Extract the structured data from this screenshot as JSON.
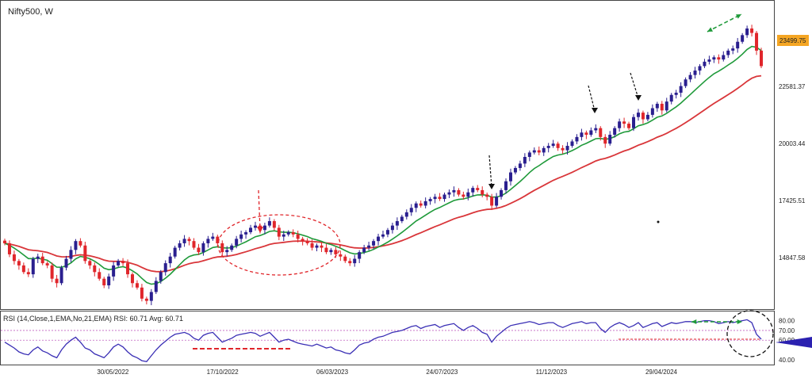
{
  "colors": {
    "up_candle": "#2a1f8f",
    "down_candle": "#e0262b",
    "ema_fast": "#1f9a3a",
    "ema_slow": "#d9363a",
    "rsi_line": "#3a2fb5",
    "rsi_bands": "#c060c0",
    "last_price_bg": "#f5a623",
    "rsi_marker": "#2b21b0",
    "annotation_red": "#e0262b",
    "annotation_green": "#1f9a3a",
    "annotation_black": "#111111"
  },
  "chart_data": [
    {
      "type": "candlestick",
      "title": "Nifty500, W",
      "x_ticks": [
        "30/05/2022",
        "17/10/2022",
        "06/03/2023",
        "24/07/2023",
        "11/12/2023",
        "29/04/2024"
      ],
      "y_ticks": [
        14847.58,
        17425.51,
        20003.44,
        22581.37
      ],
      "y_ticks_text": [
        "14847.58",
        "17425.51",
        "20003.44",
        "22581.37"
      ],
      "ylim": [
        12600,
        26200
      ],
      "last_price": 23499.75,
      "last_price_text": "23499.75",
      "series": [
        {
          "name": "Close",
          "values": [
            15500,
            15000,
            14700,
            14500,
            14200,
            14100,
            14800,
            14900,
            14600,
            14500,
            13900,
            13700,
            14400,
            14800,
            15200,
            15600,
            15400,
            14700,
            14500,
            14200,
            13900,
            13600,
            14000,
            14500,
            14700,
            14600,
            14100,
            13700,
            13500,
            13000,
            12900,
            13300,
            13800,
            14200,
            14600,
            14900,
            15300,
            15500,
            15700,
            15600,
            15300,
            15100,
            15500,
            15700,
            15800,
            15500,
            15100,
            15200,
            15400,
            15700,
            15900,
            16000,
            16200,
            16300,
            16100,
            16300,
            16500,
            16200,
            15800,
            15900,
            16000,
            15900,
            15700,
            15600,
            15500,
            15300,
            15400,
            15300,
            15100,
            15200,
            15000,
            14900,
            14700,
            14600,
            14800,
            15100,
            15300,
            15400,
            15600,
            15800,
            15900,
            16100,
            16300,
            16500,
            16700,
            16900,
            17100,
            17300,
            17200,
            17400,
            17500,
            17600,
            17500,
            17700,
            17800,
            17900,
            17700,
            17600,
            17800,
            18000,
            17900,
            17700,
            17600,
            17200,
            17600,
            17900,
            18300,
            18700,
            18900,
            19100,
            19400,
            19600,
            19700,
            19600,
            19800,
            19900,
            20000,
            19800,
            19700,
            19900,
            20100,
            20300,
            20500,
            20400,
            20600,
            20700,
            20300,
            20000,
            20400,
            20700,
            21000,
            20900,
            20700,
            21200,
            21400,
            21100,
            21300,
            21600,
            21800,
            21500,
            21900,
            22200,
            22300,
            22600,
            22900,
            23100,
            23300,
            23500,
            23700,
            23800,
            23900,
            23800,
            24000,
            24200,
            24300,
            24600,
            24900,
            25200,
            25000,
            24200,
            23500
          ]
        },
        {
          "name": "EMA fast",
          "values": []
        },
        {
          "name": "EMA slow",
          "values": []
        }
      ],
      "annotations": [
        "dashed red circle around consolidation",
        "red dashed arrow",
        "black dashed arrows",
        "green double-headed arrow"
      ]
    },
    {
      "type": "line",
      "title": "RSI (14,Close,1,EMA,No,21,EMA) RSI: 60.71 Avg: 60.71",
      "y_ticks": [
        40,
        60,
        70,
        80
      ],
      "y_ticks_text": [
        "40.00",
        "60.00",
        "70.00",
        "80.00"
      ],
      "ylim": [
        35,
        87
      ],
      "bands": [
        70,
        60
      ],
      "marker_value": 60.71,
      "series": [
        {
          "name": "RSI",
          "values": [
            58,
            55,
            52,
            48,
            46,
            45,
            50,
            53,
            49,
            47,
            44,
            42,
            50,
            56,
            60,
            63,
            58,
            52,
            50,
            46,
            44,
            42,
            47,
            53,
            56,
            53,
            48,
            44,
            42,
            39,
            38,
            44,
            50,
            55,
            59,
            63,
            66,
            67,
            68,
            66,
            62,
            60,
            65,
            67,
            68,
            63,
            58,
            60,
            62,
            65,
            66,
            67,
            68,
            67,
            64,
            66,
            68,
            63,
            58,
            60,
            61,
            59,
            57,
            56,
            55,
            54,
            56,
            54,
            52,
            53,
            50,
            49,
            47,
            46,
            50,
            55,
            57,
            58,
            61,
            63,
            64,
            66,
            68,
            69,
            70,
            72,
            74,
            75,
            72,
            74,
            75,
            76,
            73,
            75,
            76,
            77,
            73,
            70,
            73,
            75,
            72,
            68,
            66,
            58,
            64,
            68,
            72,
            75,
            76,
            77,
            78,
            79,
            78,
            76,
            77,
            78,
            78,
            75,
            73,
            75,
            77,
            78,
            79,
            77,
            78,
            78,
            72,
            68,
            73,
            76,
            78,
            76,
            73,
            75,
            78,
            73,
            75,
            77,
            78,
            74,
            76,
            78,
            77,
            78,
            79,
            79,
            78,
            79,
            80,
            80,
            79,
            77,
            78,
            79,
            78,
            79,
            80,
            81,
            78,
            66,
            61
          ]
        }
      ]
    }
  ]
}
